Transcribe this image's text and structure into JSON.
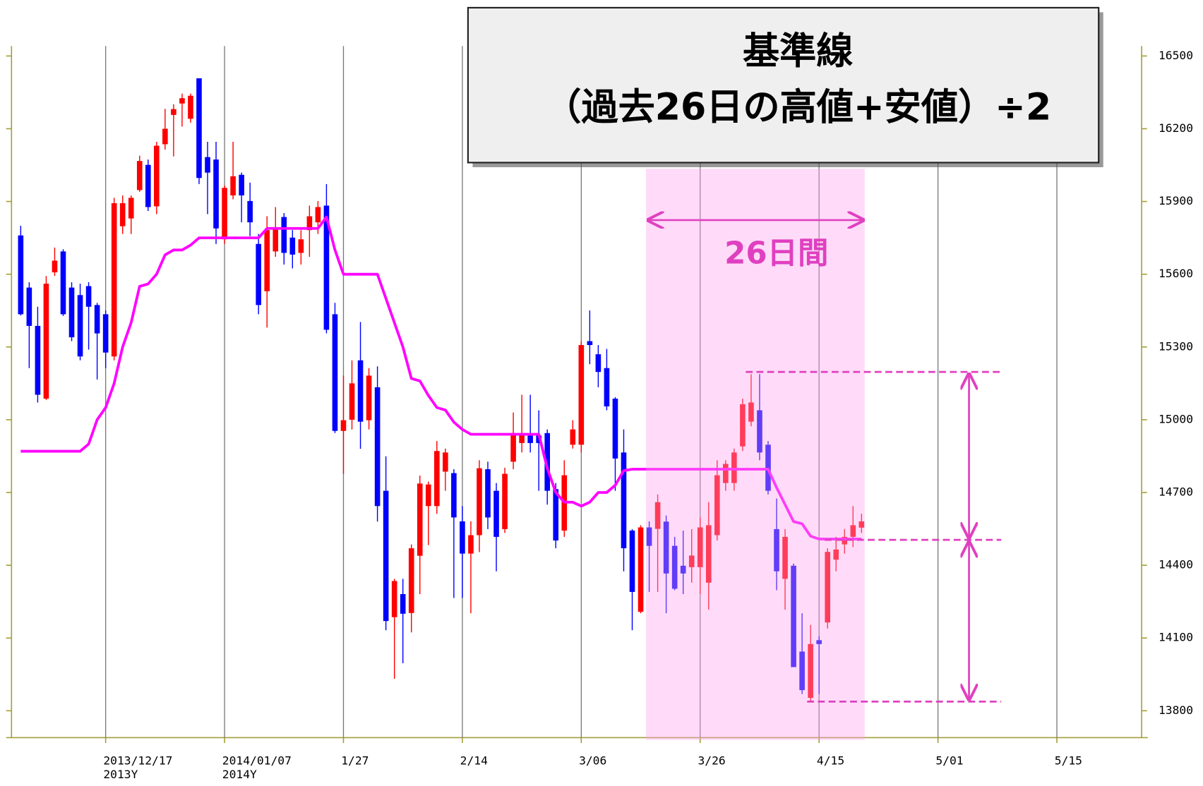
{
  "chart_data": {
    "type": "candlestick",
    "title": "基準線",
    "subtitle": "（過去26日の高値+安値）÷2",
    "annotation": "26日間",
    "up_color": "#ff0000",
    "down_color": "#0000ff",
    "categories": [
      null,
      null,
      null,
      null,
      null,
      null,
      null,
      null,
      null,
      null,
      "2013/12/17",
      null,
      null,
      null,
      null,
      null,
      null,
      null,
      null,
      null,
      null,
      null,
      null,
      null,
      "2014/01/07",
      null,
      null,
      null,
      null,
      null,
      null,
      null,
      null,
      null,
      null,
      null,
      null,
      null,
      "1/27",
      null,
      null,
      null,
      null,
      null,
      null,
      null,
      null,
      null,
      null,
      null,
      null,
      null,
      "2/14",
      null,
      null,
      null,
      null,
      null,
      null,
      null,
      null,
      null,
      null,
      null,
      null,
      null,
      "3/06",
      null,
      null,
      null,
      null,
      null,
      null,
      null,
      null,
      null,
      null,
      null,
      null,
      null,
      "3/26",
      null,
      null,
      null,
      null,
      null,
      null,
      null,
      null,
      null,
      null,
      null,
      null,
      null,
      "4/15",
      null,
      null,
      null,
      null,
      null,
      null,
      null,
      null,
      null,
      null,
      null,
      null,
      null,
      "5/01",
      null,
      null,
      null,
      null,
      null,
      null,
      null,
      null,
      null,
      null,
      null,
      null,
      null,
      "5/15"
    ],
    "category_sublabels": [
      null,
      null,
      null,
      null,
      null,
      null,
      null,
      null,
      null,
      null,
      "2013Y",
      null,
      null,
      null,
      null,
      null,
      null,
      null,
      null,
      null,
      null,
      null,
      null,
      null,
      "2014Y",
      null,
      null,
      null,
      null,
      null,
      null,
      null,
      null,
      null,
      null,
      null,
      null,
      null,
      null,
      null,
      null,
      null,
      null,
      null,
      null,
      null,
      null,
      null,
      null,
      null,
      null,
      null,
      null,
      null,
      null,
      null,
      null,
      null,
      null,
      null,
      null,
      null,
      null,
      null,
      null,
      null,
      null,
      null,
      null,
      null,
      null,
      null,
      null,
      null,
      null,
      null,
      null,
      null,
      null,
      null,
      null,
      null,
      null,
      null,
      null,
      null,
      null,
      null,
      null,
      null,
      null,
      null,
      null,
      null,
      null,
      null,
      null,
      null,
      null,
      null,
      null,
      null,
      null,
      null,
      null,
      null,
      null,
      null,
      null,
      null,
      null,
      null,
      null,
      null,
      null,
      null,
      null,
      null,
      null,
      null,
      null,
      null,
      null
    ],
    "open": [
      15760,
      15545,
      15387,
      15087,
      15608,
      15694,
      15545,
      15514,
      15551,
      15473,
      15435,
      15261,
      15798,
      15830,
      15947,
      16051,
      15880,
      16136,
      16257,
      16304,
      16241,
      16408,
      16083,
      16073,
      15744,
      15925,
      16010,
      15902,
      15725,
      15530,
      15694,
      15836,
      15751,
      15688,
      15782,
      15814,
      15883,
      15435,
      14954,
      15000,
      15245,
      14998,
      15134,
      14707,
      14186,
      14281,
      14203,
      14439,
      14644,
      14644,
      14786,
      14780,
      14581,
      14448,
      14524,
      14796,
      14707,
      14549,
      14827,
      14904,
      14935,
      14935,
      14945,
      14714,
      14543,
      14897,
      14897,
      15324,
      15270,
      15213,
      15087,
      14865,
      14543,
      14208,
      14556,
      14550,
      14580,
      14480,
      14398,
      14392,
      14392,
      14328,
      14524,
      14739,
      14739,
      14890,
      14992,
      15039,
      14897,
      14549,
      14344,
      14398,
      14044,
      13853,
      14091,
      14164,
      14423,
      14486,
      14517,
      14555,
      null,
      null,
      null,
      null,
      null,
      null,
      null,
      null,
      null,
      null,
      null,
      null,
      null,
      null,
      null,
      null,
      null,
      null,
      null,
      null,
      null,
      null,
      null
    ],
    "high": [
      15800,
      15567,
      15466,
      15593,
      15710,
      15703,
      15567,
      15561,
      15567,
      15482,
      15451,
      15915,
      15925,
      15925,
      16089,
      16073,
      16146,
      16282,
      16301,
      16345,
      16345,
      16408,
      16146,
      16146,
      15966,
      16146,
      16019,
      15978,
      15766,
      15839,
      15877,
      15852,
      15782,
      15782,
      15883,
      15902,
      15972,
      15482,
      15182,
      15245,
      15403,
      15213,
      15220,
      14849,
      14344,
      14344,
      14486,
      14770,
      14745,
      14912,
      14881,
      14796,
      14644,
      14581,
      14833,
      14827,
      14739,
      14802,
      15030,
      15103,
      15103,
      15039,
      14960,
      14739,
      14833,
      14998,
      15324,
      15451,
      15308,
      15292,
      15093,
      14960,
      14549,
      14565,
      14581,
      14692,
      14605,
      14517,
      14543,
      14549,
      14597,
      14660,
      14833,
      14833,
      14881,
      15087,
      15188,
      15188,
      14912,
      14675,
      14549,
      14407,
      14202,
      14154,
      14107,
      14470,
      14517,
      14549,
      14644,
      14612,
      null,
      null,
      null,
      null,
      null,
      null,
      null,
      null,
      null,
      null,
      null,
      null,
      null,
      null,
      null,
      null,
      null,
      null,
      null,
      null,
      null,
      null,
      null
    ],
    "low": [
      15430,
      15213,
      15071,
      15081,
      15593,
      15428,
      15324,
      15245,
      15289,
      15166,
      15213,
      15245,
      15766,
      15766,
      15940,
      15861,
      15848,
      16114,
      16086,
      16209,
      16225,
      15972,
      15848,
      15725,
      15725,
      15909,
      15814,
      15757,
      15435,
      15380,
      15672,
      15640,
      15624,
      15640,
      15672,
      15766,
      15356,
      14945,
      14777,
      14960,
      14880,
      14960,
      14580,
      14132,
      13932,
      13996,
      14123,
      14281,
      14483,
      14612,
      14707,
      14265,
      14265,
      14202,
      14454,
      14549,
      14375,
      14533,
      14796,
      14865,
      14865,
      14707,
      14650,
      14470,
      14517,
      14881,
      14865,
      15229,
      15134,
      15039,
      14707,
      14375,
      14132,
      14202,
      14290,
      14290,
      14202,
      14297,
      14281,
      14328,
      14281,
      14217,
      14502,
      14707,
      14707,
      14871,
      14973,
      14833,
      14692,
      14297,
      14217,
      13980,
      13869,
      13837,
      13869,
      14139,
      14375,
      14448,
      14475,
      14533,
      null,
      null,
      null,
      null,
      null,
      null,
      null,
      null,
      null,
      null,
      null,
      null,
      null,
      null,
      null,
      null,
      null,
      null,
      null,
      null,
      null,
      null,
      null
    ],
    "close": [
      15435,
      15387,
      15103,
      15561,
      15656,
      15435,
      15340,
      15261,
      15466,
      15356,
      15277,
      15893,
      15893,
      15915,
      16067,
      15877,
      16130,
      16200,
      16281,
      16326,
      16336,
      15997,
      16019,
      15789,
      15956,
      16004,
      15925,
      15814,
      15473,
      15782,
      15789,
      15688,
      15681,
      15744,
      15839,
      15877,
      15371,
      14954,
      14998,
      15150,
      14992,
      15182,
      14644,
      14170,
      14335,
      14200,
      14470,
      14737,
      14733,
      14871,
      14865,
      14597,
      14448,
      14524,
      14800,
      14597,
      14517,
      14777,
      14945,
      14941,
      14904,
      14904,
      14707,
      14502,
      14771,
      14960,
      15308,
      15308,
      15197,
      15055,
      14840,
      14470,
      14290,
      14556,
      14480,
      14660,
      14366,
      14303,
      14366,
      14440,
      14556,
      14565,
      14771,
      14818,
      14865,
      15064,
      15071,
      14865,
      14707,
      14375,
      14517,
      13980,
      13885,
      14075,
      14075,
      14455,
      14465,
      14517,
      14565,
      14581,
      null,
      null,
      null,
      null,
      null,
      null,
      null,
      null,
      null,
      null,
      null,
      null,
      null,
      null,
      null,
      null,
      null,
      null,
      null,
      null,
      null,
      null,
      null
    ],
    "line": {
      "color": "#ff00ff",
      "values": [
        14870,
        14870,
        14870,
        14870,
        14870,
        14870,
        14870,
        14870,
        14900,
        15000,
        15050,
        15150,
        15300,
        15400,
        15550,
        15560,
        15600,
        15680,
        15700,
        15700,
        15720,
        15750,
        15750,
        15750,
        15750,
        15750,
        15750,
        15750,
        15750,
        15789,
        15789,
        15789,
        15789,
        15789,
        15789,
        15789,
        15836,
        15700,
        15600,
        15600,
        15600,
        15600,
        15600,
        15500,
        15400,
        15300,
        15170,
        15160,
        15100,
        15050,
        15040,
        14990,
        14960,
        14940,
        14940,
        14940,
        14940,
        14940,
        14940,
        14940,
        14940,
        14940,
        14800,
        14700,
        14660,
        14660,
        14644,
        14660,
        14700,
        14700,
        14730,
        14790,
        14796,
        14796,
        14796,
        14796,
        14796,
        14796,
        14796,
        14796,
        14796,
        14796,
        14796,
        14796,
        14796,
        14796,
        14796,
        14796,
        14796,
        14720,
        14650,
        14580,
        14571,
        14520,
        14508,
        14508,
        14508,
        14508,
        14508,
        14508,
        null,
        null,
        null,
        null,
        null,
        null,
        null,
        null,
        null,
        null,
        null,
        null,
        null,
        null,
        null,
        null,
        null,
        null,
        null,
        null,
        null,
        null,
        null
      ]
    },
    "ylim": [
      13689,
      16541
    ],
    "yticks": [
      13800,
      14100,
      14400,
      14700,
      15000,
      15300,
      15600,
      15900,
      16200,
      16500
    ]
  }
}
